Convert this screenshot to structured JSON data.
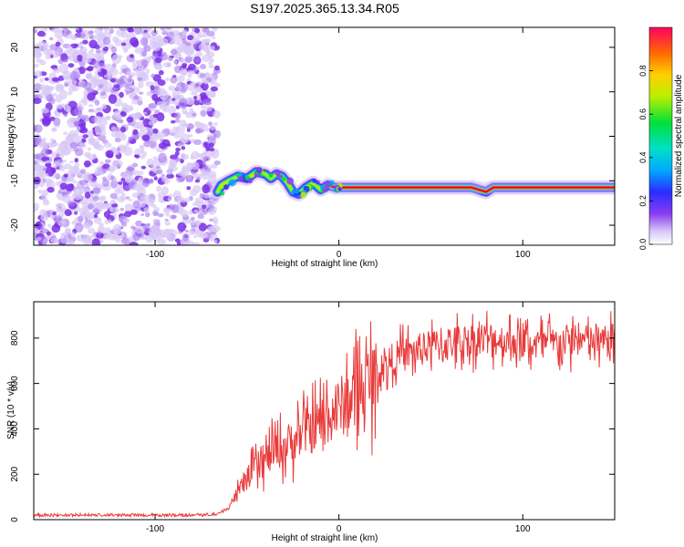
{
  "title": "S197.2025.365.13.34.R05",
  "chart_data": [
    {
      "type": "heatmap",
      "xlabel": "Height of straight line (km)",
      "ylabel": "Frequency (Hz)",
      "xlim": [
        -166,
        150
      ],
      "ylim": [
        -24.5,
        24.5
      ],
      "xticks": [
        -100,
        0,
        100
      ],
      "yticks": [
        -20,
        -10,
        0,
        10,
        20
      ],
      "noise_region_x": [
        -166,
        -66
      ],
      "signal_track": {
        "x": [
          -66,
          -64,
          -60,
          -55,
          -50,
          -45,
          -40,
          -37,
          -34,
          -31,
          -28,
          -25,
          -22,
          -18,
          -14,
          -10,
          -6,
          -2,
          0,
          20,
          40,
          60,
          72,
          76,
          80,
          84,
          90,
          100,
          120,
          150
        ],
        "freq": [
          -12.5,
          -11.0,
          -10.0,
          -9.0,
          -9.5,
          -8.0,
          -8.5,
          -9.5,
          -8.5,
          -9.0,
          -10.5,
          -12.5,
          -13.0,
          -11.5,
          -10.5,
          -12.0,
          -11.0,
          -11.5,
          -11.5,
          -11.5,
          -11.5,
          -11.5,
          -11.5,
          -12.0,
          -12.5,
          -11.5,
          -11.5,
          -11.5,
          -11.5,
          -11.5
        ]
      },
      "colorbar": {
        "label": "Normalized spectral amplitude",
        "range": [
          0,
          1
        ],
        "ticks": [
          "0.0",
          "0.2",
          "0.4",
          "0.6",
          "0.8"
        ]
      }
    },
    {
      "type": "line",
      "xlabel": "Height of straight line (km)",
      "ylabel": "SNR (10 * v/v)",
      "xlim": [
        -166,
        150
      ],
      "ylim": [
        0,
        960
      ],
      "xticks": [
        -100,
        0,
        100
      ],
      "yticks": [
        0,
        200,
        400,
        600,
        800
      ],
      "series": [
        {
          "name": "SNR",
          "color": "#e83a3a",
          "x": [
            -166,
            -150,
            -130,
            -110,
            -90,
            -70,
            -65,
            -60,
            -55,
            -50,
            -45,
            -40,
            -35,
            -30,
            -25,
            -20,
            -15,
            -10,
            -5,
            0,
            5,
            10,
            15,
            20,
            25,
            30,
            40,
            50,
            60,
            70,
            80,
            90,
            100,
            110,
            120,
            130,
            140,
            150
          ],
          "y": [
            20,
            20,
            20,
            20,
            20,
            22,
            25,
            60,
            120,
            180,
            230,
            260,
            300,
            320,
            350,
            380,
            400,
            430,
            460,
            490,
            530,
            560,
            600,
            640,
            680,
            710,
            740,
            760,
            780,
            790,
            800,
            790,
            780,
            770,
            780,
            790,
            780,
            790
          ]
        }
      ]
    }
  ]
}
